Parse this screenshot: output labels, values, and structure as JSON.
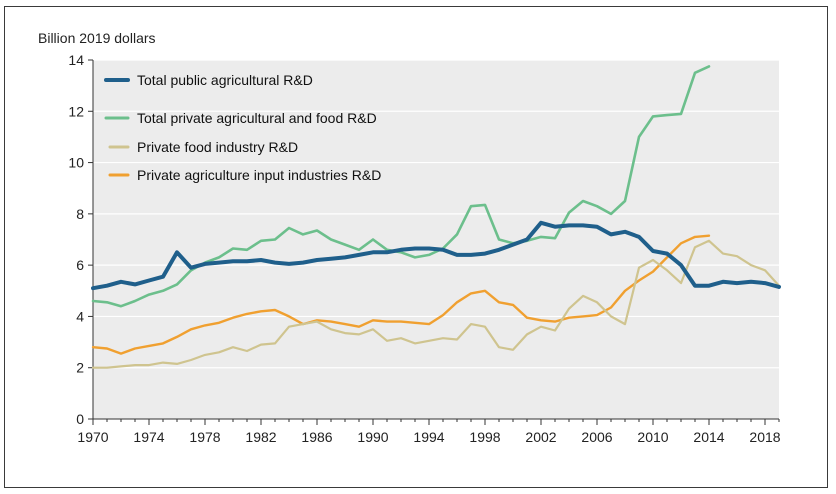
{
  "chart_data": {
    "type": "line",
    "title": "",
    "unit_label": "Billion 2019 dollars",
    "xlabel": "",
    "ylabel": "",
    "xlim": [
      1970,
      2019
    ],
    "ylim": [
      0,
      14
    ],
    "x_ticks": [
      "1970",
      "1974",
      "1978",
      "1982",
      "1986",
      "1990",
      "1994",
      "1998",
      "2002",
      "2006",
      "2010",
      "2014",
      "2018"
    ],
    "y_ticks": [
      "0",
      "2",
      "4",
      "6",
      "8",
      "10",
      "12",
      "14"
    ],
    "grid": "horizontal",
    "legend_position": "top-left",
    "series": [
      {
        "name": "Total public agricultural R&D",
        "color": "#1f5f8b",
        "x": [
          1970,
          1971,
          1972,
          1973,
          1974,
          1975,
          1976,
          1977,
          1978,
          1979,
          1980,
          1981,
          1982,
          1983,
          1984,
          1985,
          1986,
          1987,
          1988,
          1989,
          1990,
          1991,
          1992,
          1993,
          1994,
          1995,
          1996,
          1997,
          1998,
          1999,
          2000,
          2001,
          2002,
          2003,
          2004,
          2005,
          2006,
          2007,
          2008,
          2009,
          2010,
          2011,
          2012,
          2013,
          2014,
          2015,
          2016,
          2017,
          2018,
          2019
        ],
        "values": [
          5.1,
          5.2,
          5.35,
          5.25,
          5.4,
          5.55,
          6.5,
          5.9,
          6.05,
          6.1,
          6.15,
          6.15,
          6.2,
          6.1,
          6.05,
          6.1,
          6.2,
          6.25,
          6.3,
          6.4,
          6.5,
          6.5,
          6.6,
          6.65,
          6.65,
          6.6,
          6.4,
          6.4,
          6.45,
          6.6,
          6.8,
          7.0,
          7.65,
          7.5,
          7.55,
          7.55,
          7.5,
          7.2,
          7.3,
          7.1,
          6.55,
          6.45,
          6.0,
          5.2,
          5.2,
          5.35,
          5.3,
          5.35,
          5.3,
          5.15
        ]
      },
      {
        "name": "Total private agricultural and food R&D",
        "color": "#6cbf8c",
        "x": [
          1970,
          1971,
          1972,
          1973,
          1974,
          1975,
          1976,
          1977,
          1978,
          1979,
          1980,
          1981,
          1982,
          1983,
          1984,
          1985,
          1986,
          1987,
          1988,
          1989,
          1990,
          1991,
          1992,
          1993,
          1994,
          1995,
          1996,
          1997,
          1998,
          1999,
          2000,
          2001,
          2002,
          2003,
          2004,
          2005,
          2006,
          2007,
          2008,
          2009,
          2010,
          2011,
          2012,
          2013,
          2014
        ],
        "values": [
          4.6,
          4.55,
          4.4,
          4.6,
          4.85,
          5.0,
          5.25,
          5.8,
          6.1,
          6.3,
          6.65,
          6.6,
          6.95,
          7.0,
          7.45,
          7.2,
          7.35,
          7.0,
          6.8,
          6.6,
          7.0,
          6.6,
          6.5,
          6.3,
          6.4,
          6.65,
          7.2,
          8.3,
          8.35,
          7.0,
          6.85,
          6.95,
          7.1,
          7.05,
          8.05,
          8.5,
          8.3,
          8.0,
          8.5,
          11.0,
          11.8,
          11.85,
          11.9,
          13.5,
          13.75
        ]
      },
      {
        "name": "Private food industry R&D",
        "color": "#cfc48f",
        "x": [
          1970,
          1971,
          1972,
          1973,
          1974,
          1975,
          1976,
          1977,
          1978,
          1979,
          1980,
          1981,
          1982,
          1983,
          1984,
          1985,
          1986,
          1987,
          1988,
          1989,
          1990,
          1991,
          1992,
          1993,
          1994,
          1995,
          1996,
          1997,
          1998,
          1999,
          2000,
          2001,
          2002,
          2003,
          2004,
          2005,
          2006,
          2007,
          2008,
          2009,
          2010,
          2011,
          2012,
          2013,
          2014,
          2015,
          2016,
          2017,
          2018,
          2019
        ],
        "values": [
          2.0,
          2.0,
          2.05,
          2.1,
          2.1,
          2.2,
          2.15,
          2.3,
          2.5,
          2.6,
          2.8,
          2.65,
          2.9,
          2.95,
          3.6,
          3.7,
          3.8,
          3.5,
          3.35,
          3.3,
          3.5,
          3.05,
          3.15,
          2.95,
          3.05,
          3.15,
          3.1,
          3.7,
          3.6,
          2.8,
          2.7,
          3.3,
          3.6,
          3.45,
          4.3,
          4.8,
          4.55,
          4.0,
          3.7,
          5.9,
          6.2,
          5.8,
          5.3,
          6.7,
          6.95,
          6.45,
          6.35,
          6.0,
          5.8,
          5.2
        ]
      },
      {
        "name": "Private agriculture input industries R&D",
        "color": "#f0a030",
        "x": [
          1970,
          1971,
          1972,
          1973,
          1974,
          1975,
          1976,
          1977,
          1978,
          1979,
          1980,
          1981,
          1982,
          1983,
          1984,
          1985,
          1986,
          1987,
          1988,
          1989,
          1990,
          1991,
          1992,
          1993,
          1994,
          1995,
          1996,
          1997,
          1998,
          1999,
          2000,
          2001,
          2002,
          2003,
          2004,
          2005,
          2006,
          2007,
          2008,
          2009,
          2010,
          2011,
          2012,
          2013,
          2014
        ],
        "values": [
          2.8,
          2.75,
          2.55,
          2.75,
          2.85,
          2.95,
          3.2,
          3.5,
          3.65,
          3.75,
          3.95,
          4.1,
          4.2,
          4.25,
          4.0,
          3.7,
          3.85,
          3.8,
          3.7,
          3.6,
          3.85,
          3.8,
          3.8,
          3.75,
          3.7,
          4.05,
          4.55,
          4.9,
          5.0,
          4.55,
          4.45,
          3.95,
          3.85,
          3.8,
          3.95,
          4.0,
          4.05,
          4.35,
          5.0,
          5.4,
          5.75,
          6.3,
          6.85,
          7.1,
          7.15
        ]
      }
    ]
  }
}
